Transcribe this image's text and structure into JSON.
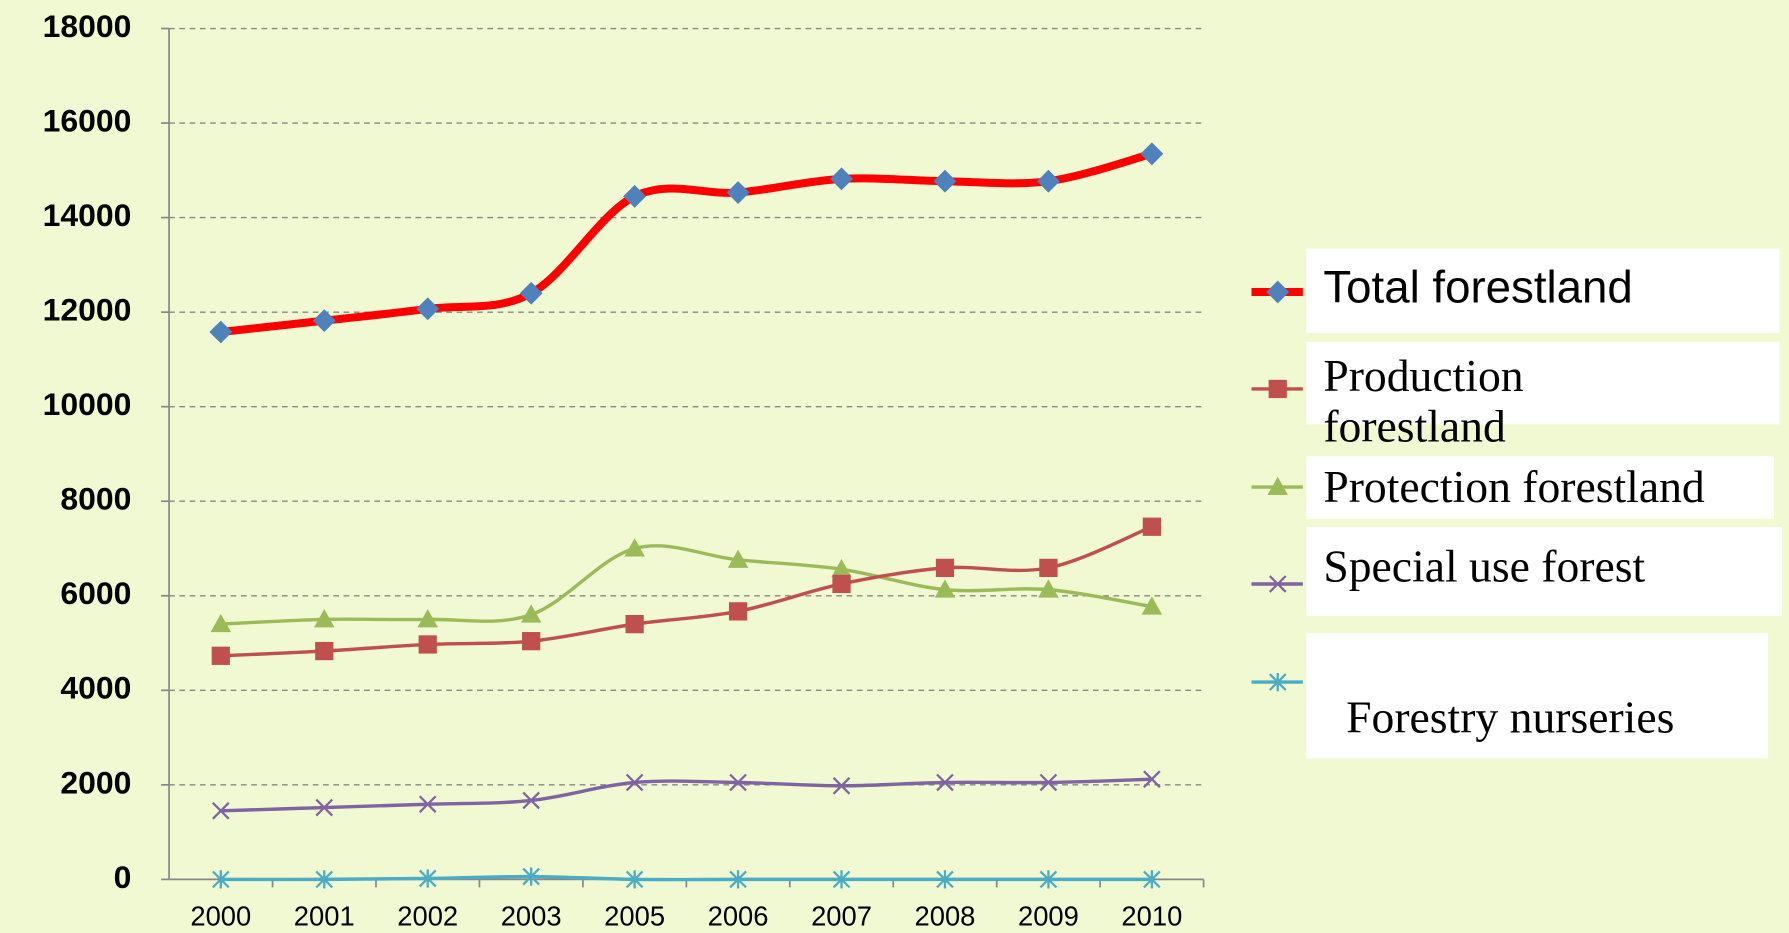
{
  "chart_data": {
    "type": "line",
    "categories": [
      "2000",
      "2001",
      "2002",
      "2003",
      "2005",
      "2006",
      "2007",
      "2008",
      "2009",
      "2010"
    ],
    "series": [
      {
        "name": "Total forestland",
        "color": "#ff0000",
        "marker": "diamond",
        "marker_color": "#4f81bd",
        "line_width": 7,
        "values": [
          11580,
          11820,
          12070,
          12400,
          14450,
          14530,
          14820,
          14770,
          14770,
          15350
        ]
      },
      {
        "name": "Production forestland",
        "color": "#c0504d",
        "marker": "square",
        "marker_color": "#c0504d",
        "line_width": 3,
        "values": [
          4730,
          4830,
          4970,
          5040,
          5400,
          5670,
          6250,
          6590,
          6590,
          7460
        ]
      },
      {
        "name": "Protection forestland",
        "color": "#9bbb59",
        "marker": "triangle",
        "marker_color": "#9bbb59",
        "line_width": 3,
        "values": [
          5400,
          5500,
          5500,
          5600,
          7000,
          6760,
          6560,
          6130,
          6130,
          5770
        ]
      },
      {
        "name": "Special use forest",
        "color": "#8064a2",
        "marker": "x",
        "marker_color": "#8064a2",
        "line_width": 3,
        "values": [
          1450,
          1520,
          1590,
          1670,
          2050,
          2050,
          1980,
          2050,
          2050,
          2120
        ]
      },
      {
        "name": "Forestry nurseries",
        "color": "#4bacc6",
        "marker": "asterisk",
        "marker_color": "#4bacc6",
        "line_width": 3,
        "values": [
          0,
          0,
          20,
          60,
          0,
          0,
          0,
          0,
          0,
          0
        ]
      }
    ],
    "ylim": [
      0,
      18000
    ],
    "yticks": [
      0,
      2000,
      4000,
      6000,
      8000,
      10000,
      12000,
      14000,
      16000,
      18000
    ],
    "grid": true,
    "smooth": true,
    "legend": "right"
  }
}
